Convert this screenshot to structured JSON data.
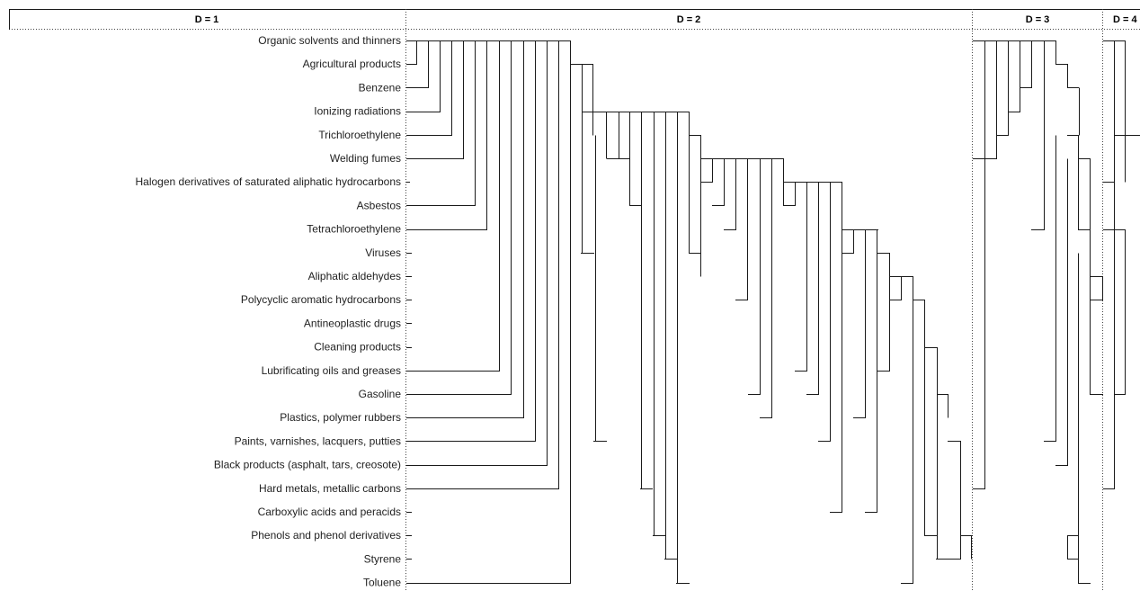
{
  "header": {
    "sections": [
      {
        "label": "D = 1"
      },
      {
        "label": "D = 2"
      },
      {
        "label": "D = 3"
      },
      {
        "label": "D = 4"
      }
    ]
  },
  "labels": [
    "Organic solvents and thinners",
    "Agricultural products",
    "Benzene",
    "Ionizing radiations",
    "Trichloroethylene",
    "Welding fumes",
    "Halogen derivatives of saturated aliphatic hydrocarbons",
    "Asbestos",
    "Tetrachloroethylene",
    "Viruses",
    "Aliphatic aldehydes",
    "Polycyclic aromatic hydrocarbons",
    "Antineoplastic drugs",
    "Cleaning products",
    "Lubrificating oils and greases",
    "Gasoline",
    "Plastics, polymer rubbers",
    "Paints, varnishes, lacquers, putties",
    "Black products (asphalt, tars, creosote)",
    "Hard metals, metallic carbons",
    "Carboxylic acids and peracids",
    "Phenols and phenol derivatives",
    "Styrene",
    "Toluene"
  ]
}
